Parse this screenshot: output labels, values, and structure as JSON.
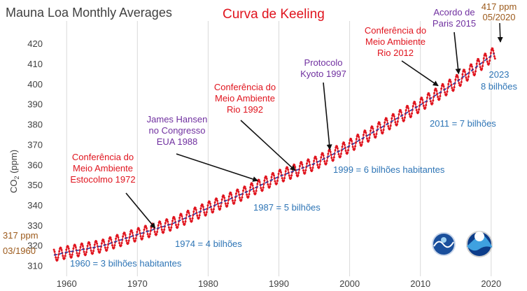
{
  "chart_data": {
    "type": "line",
    "title": "Mauna Loa Monthly Averages",
    "subtitle": "Curva de Keeling",
    "xlabel": "",
    "ylabel": "CO2 (ppm)",
    "xlim": [
      1958,
      2022
    ],
    "ylim": [
      305,
      428
    ],
    "xticks": [
      1960,
      1970,
      1980,
      1990,
      2000,
      2010,
      2020
    ],
    "yticks": [
      310,
      320,
      330,
      340,
      350,
      360,
      370,
      380,
      390,
      400,
      410,
      420
    ],
    "grid": "vertical",
    "legend": "none",
    "series": [
      {
        "x": [
          1958,
          1960,
          1965,
          1970,
          1975,
          1980,
          1985,
          1990,
          1995,
          2000,
          2005,
          2010,
          2015,
          2020
        ],
        "values": [
          315.3,
          316.9,
          320.0,
          325.7,
          331.1,
          338.8,
          346.1,
          354.4,
          360.8,
          369.6,
          379.8,
          389.9,
          401.0,
          414.2
        ]
      }
    ],
    "start_label": {
      "value": "317 ppm",
      "date": "03/1960"
    },
    "end_label": {
      "value": "417 ppm",
      "date": "05/2020"
    },
    "events": [
      {
        "id": "estocolmo",
        "lines": [
          "Conferência do",
          "Meio Ambiente",
          "Estocolmo 1972"
        ],
        "x": 1972.5,
        "y": 327.5,
        "color": "red"
      },
      {
        "id": "hansen",
        "lines": [
          "James Hansen",
          "no Congresso",
          "EUA 1988"
        ],
        "x": 1987.0,
        "y": 351.0,
        "color": "purple"
      },
      {
        "id": "rio1992",
        "lines": [
          "Conferência do",
          "Meio Ambiente",
          "Rio 1992"
        ],
        "x": 1992.3,
        "y": 356.0,
        "color": "red"
      },
      {
        "id": "kyoto",
        "lines": [
          "Protocolo",
          "Kyoto 1997"
        ],
        "x": 1997.2,
        "y": 366.5,
        "color": "purple"
      },
      {
        "id": "rio2012",
        "lines": [
          "Conferência do",
          "Meio Ambiente",
          "Rio 2012"
        ],
        "x": 2012.5,
        "y": 398.0,
        "color": "red"
      },
      {
        "id": "paris",
        "lines": [
          "Acordo de",
          "Paris 2015"
        ],
        "x": 2015.4,
        "y": 404.0,
        "color": "purple"
      }
    ],
    "population": [
      {
        "id": "p1960",
        "label": "1960 = 3 bilhões habitantes"
      },
      {
        "id": "p1974",
        "label": "1974 = 4 bilhões"
      },
      {
        "id": "p1987",
        "label": "1987 = 5 bilhões"
      },
      {
        "id": "p1999",
        "label": "1999 = 6 bilhões habitantes"
      },
      {
        "id": "p2011",
        "label": "2011 = 7 bilhões"
      },
      {
        "id": "p2023",
        "lines": [
          "2023",
          "8 bilhões"
        ]
      }
    ],
    "colors": {
      "raw": "#e0141e",
      "trend": "#2f3a9e",
      "grid": "#d9d9d9",
      "red": "#e0141e",
      "purple": "#7030a0",
      "blue": "#2e75b6",
      "brown": "#9c5a1b"
    }
  }
}
